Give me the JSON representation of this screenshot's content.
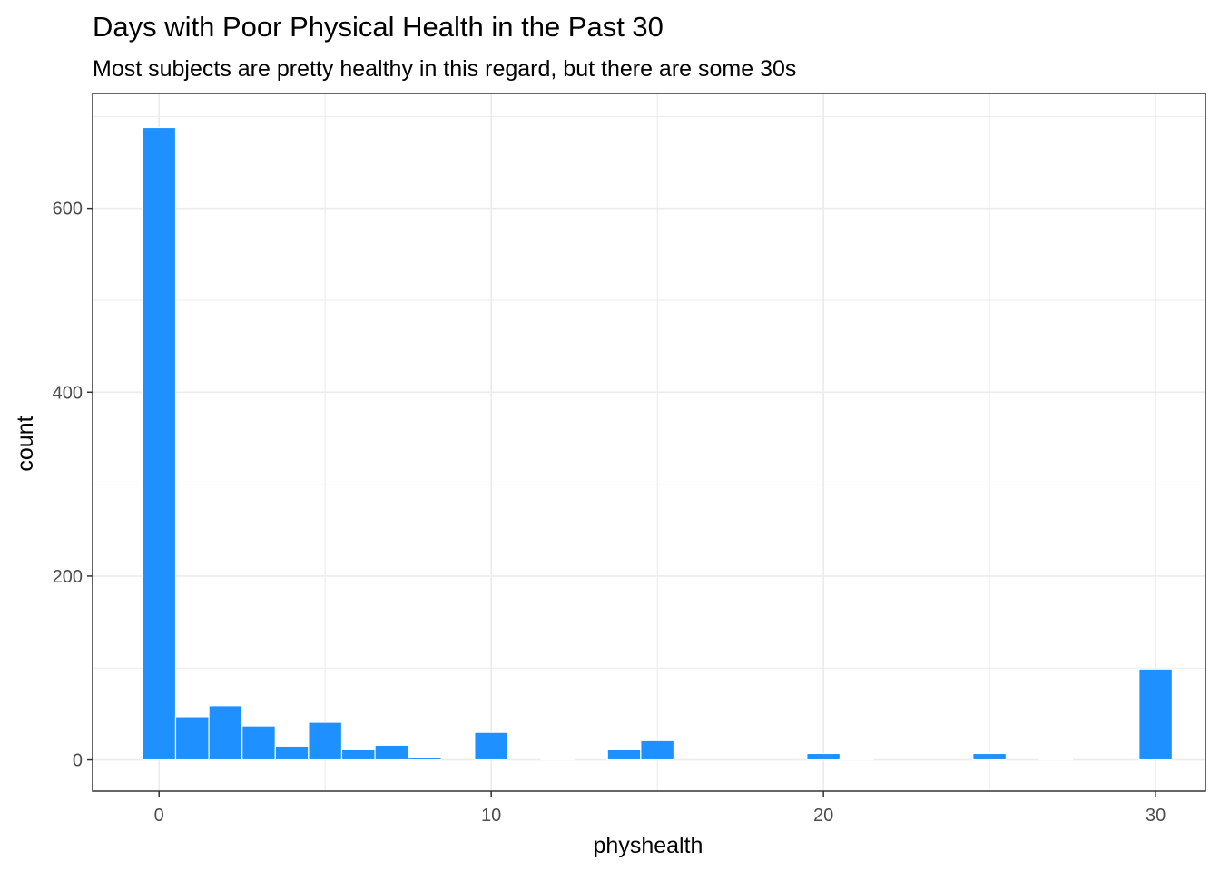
{
  "chart_data": {
    "type": "bar",
    "title": "Days with Poor Physical Health in the Past 30",
    "subtitle": "Most subjects are pretty healthy in this regard, but there are some 30s",
    "xlabel": "physhealth",
    "ylabel": "count",
    "x_ticks": [
      0,
      10,
      20,
      30
    ],
    "y_ticks": [
      0,
      200,
      400,
      600
    ],
    "xlim": [
      -2,
      31.5
    ],
    "ylim": [
      -34,
      725
    ],
    "bin_width": 1,
    "x": [
      0,
      1,
      2,
      3,
      4,
      5,
      6,
      7,
      8,
      9,
      10,
      11,
      12,
      13,
      14,
      15,
      16,
      17,
      18,
      19,
      20,
      21,
      22,
      23,
      24,
      25,
      26,
      27,
      28,
      29,
      30
    ],
    "values": [
      688,
      47,
      59,
      37,
      15,
      41,
      11,
      16,
      3,
      0,
      30,
      0,
      1,
      0,
      11,
      21,
      0,
      0,
      0,
      0,
      7,
      1,
      0,
      0,
      0,
      7,
      0,
      1,
      0,
      0,
      99
    ],
    "grid": true,
    "bar_color": "#1E90FF",
    "bar_outline": "#ffffff",
    "panel_border_color": "#333333",
    "grid_color": "#ebebeb"
  }
}
